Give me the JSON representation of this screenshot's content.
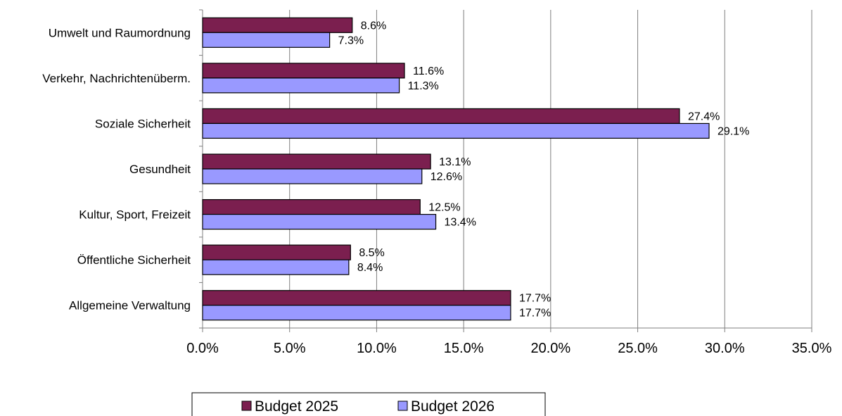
{
  "chart_data": {
    "type": "bar",
    "orientation": "horizontal",
    "categories": [
      "Umwelt und Raumordnung",
      "Verkehr, Nachrichtenüberm.",
      "Soziale Sicherheit",
      "Gesundheit",
      "Kultur, Sport, Freizeit",
      "Öffentliche Sicherheit",
      "Allgemeine Verwaltung"
    ],
    "series": [
      {
        "name": "Budget 2025",
        "color": "#7b1f4f",
        "values": [
          8.6,
          11.6,
          27.4,
          13.1,
          12.5,
          8.5,
          17.7
        ],
        "labels": [
          "8.6%",
          "11.6%",
          "27.4%",
          "13.1%",
          "12.5%",
          "8.5%",
          "17.7%"
        ]
      },
      {
        "name": "Budget 2026",
        "color": "#9999ff",
        "values": [
          7.3,
          11.3,
          29.1,
          12.6,
          13.4,
          8.4,
          17.7
        ],
        "labels": [
          "7.3%",
          "11.3%",
          "29.1%",
          "12.6%",
          "13.4%",
          "8.4%",
          "17.7%"
        ]
      }
    ],
    "xlim": [
      0,
      35
    ],
    "xticks": [
      0,
      5,
      10,
      15,
      20,
      25,
      30,
      35
    ],
    "xtick_labels": [
      "0.0%",
      "5.0%",
      "10.0%",
      "15.0%",
      "20.0%",
      "25.0%",
      "30.0%",
      "35.0%"
    ],
    "grid": "vertical",
    "legend": "bottom",
    "title": "",
    "xlabel": "",
    "ylabel": ""
  }
}
